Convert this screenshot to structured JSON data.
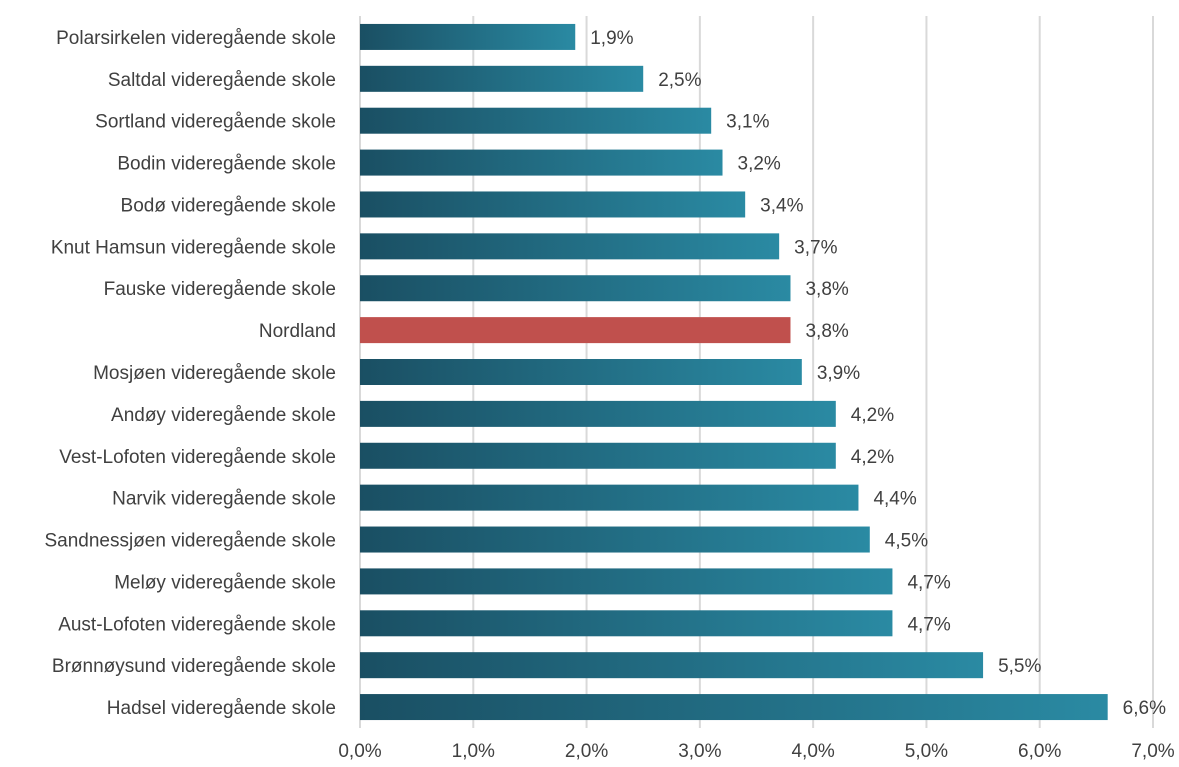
{
  "chart_data": {
    "type": "bar",
    "orientation": "horizontal",
    "categories": [
      "Polarsirkelen videregående skole",
      "Saltdal videregående skole",
      "Sortland videregående skole",
      "Bodin videregående skole",
      "Bodø videregående skole",
      "Knut Hamsun videregående skole",
      "Fauske videregående skole",
      "Nordland",
      "Mosjøen videregående skole",
      "Andøy videregående skole",
      "Vest-Lofoten videregående skole",
      "Narvik videregående skole",
      "Sandnessjøen videregående skole",
      "Meløy videregående skole",
      "Aust-Lofoten videregående skole",
      "Brønnøysund videregående skole",
      "Hadsel videregående skole"
    ],
    "values": [
      1.9,
      2.5,
      3.1,
      3.2,
      3.4,
      3.7,
      3.8,
      3.8,
      3.9,
      4.2,
      4.2,
      4.4,
      4.5,
      4.7,
      4.7,
      5.5,
      6.6
    ],
    "value_labels": [
      "1,9%",
      "2,5%",
      "3,1%",
      "3,2%",
      "3,4%",
      "3,7%",
      "3,8%",
      "3,8%",
      "3,9%",
      "4,2%",
      "4,2%",
      "4,4%",
      "4,5%",
      "4,7%",
      "4,7%",
      "5,5%",
      "6,6%"
    ],
    "highlight_category": "Nordland",
    "xlim": [
      0,
      7
    ],
    "x_ticks": [
      0,
      1,
      2,
      3,
      4,
      5,
      6,
      7
    ],
    "x_tick_labels": [
      "0,0%",
      "1,0%",
      "2,0%",
      "3,0%",
      "4,0%",
      "5,0%",
      "6,0%",
      "7,0%"
    ],
    "grid": "vertical",
    "legend": "none",
    "title": "",
    "xlabel": "",
    "ylabel": "",
    "colors": {
      "bar_dark": "#1a4f63",
      "bar_light": "#2a8aa3",
      "highlight": "#c0504d",
      "grid": "#d9d9d9",
      "text": "#404040"
    }
  }
}
